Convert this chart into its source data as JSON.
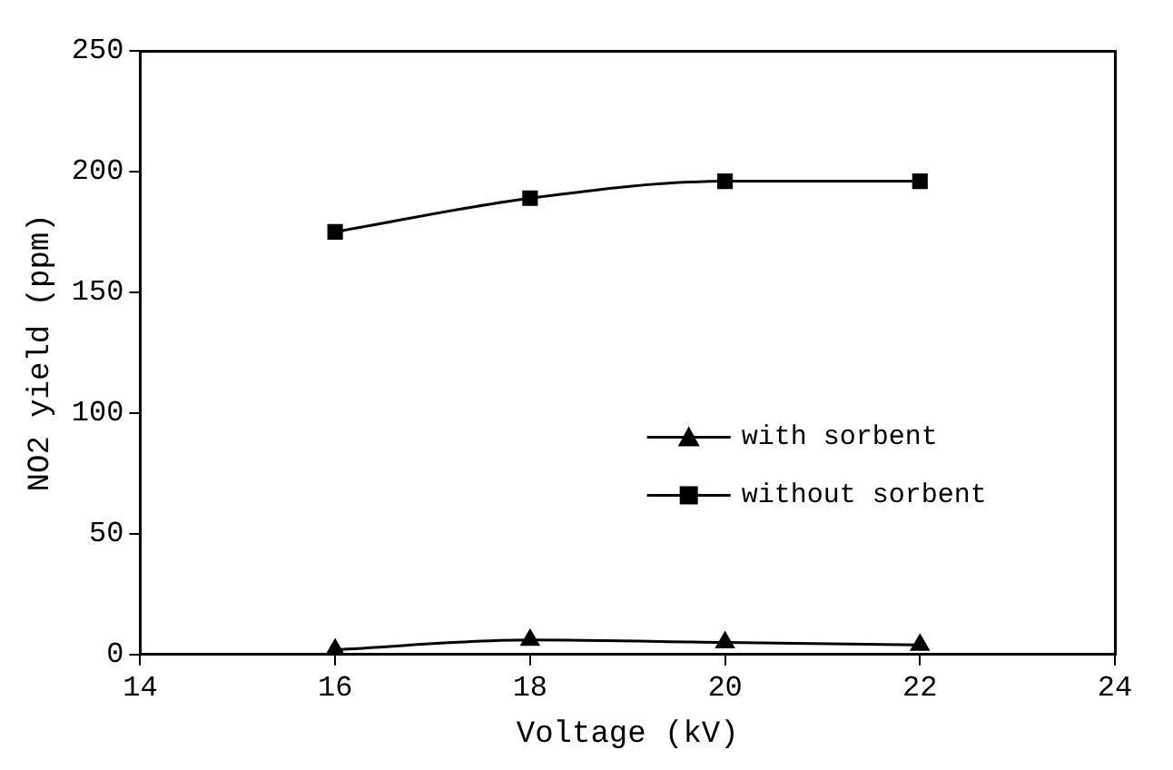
{
  "chart_data": {
    "type": "line",
    "xlabel": "Voltage (kV)",
    "ylabel": "NO2 yield (ppm)",
    "x": [
      16,
      18,
      20,
      22
    ],
    "series": [
      {
        "name": "with sorbent",
        "color": "#000000",
        "marker": "triangle",
        "values": [
          2,
          6,
          5,
          4
        ]
      },
      {
        "name": "without sorbent",
        "color": "#000000",
        "marker": "square",
        "values": [
          175,
          189,
          196,
          196
        ]
      }
    ],
    "xlim": [
      14,
      24
    ],
    "xticks": [
      14,
      16,
      18,
      20,
      22,
      24
    ],
    "ylim": [
      0,
      250
    ],
    "yticks": [
      0,
      50,
      100,
      150,
      200,
      250
    ],
    "grid": false,
    "legend": "bottom right",
    "line_style": "solid"
  }
}
